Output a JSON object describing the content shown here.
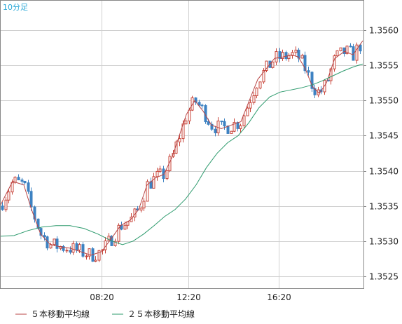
{
  "chart_data": {
    "type": "candlestick",
    "title": "10分足",
    "x_ticks": [
      "08:20",
      "12:20",
      "16:20"
    ],
    "y_ticks": [
      1.356,
      1.3555,
      1.355,
      1.3545,
      1.354,
      1.3535,
      1.353,
      1.3525
    ],
    "ylim": [
      1.35233,
      1.35643
    ],
    "grid": true,
    "y_axis_side": "right",
    "legend_position": "bottom-left",
    "colors": {
      "up": "#c8453a",
      "down": "#3d82c2",
      "ma5": "#b84545",
      "ma25": "#2e9b6e",
      "grid": "#d0d0d0",
      "title": "#2aa8d8"
    },
    "series": [
      {
        "name": "５本移動平均線",
        "color": "#b84545",
        "points": [
          [
            0,
            1.3535
          ],
          [
            18,
            1.35385
          ],
          [
            34,
            1.3538
          ],
          [
            45,
            1.35345
          ],
          [
            58,
            1.3531
          ],
          [
            72,
            1.35295
          ],
          [
            86,
            1.35292
          ],
          [
            100,
            1.3529
          ],
          [
            115,
            1.35285
          ],
          [
            130,
            1.3528
          ],
          [
            145,
            1.35285
          ],
          [
            160,
            1.35305
          ],
          [
            172,
            1.35322
          ],
          [
            186,
            1.3533
          ],
          [
            198,
            1.35345
          ],
          [
            210,
            1.3538
          ],
          [
            222,
            1.3539
          ],
          [
            234,
            1.35395
          ],
          [
            246,
            1.3542
          ],
          [
            256,
            1.3545
          ],
          [
            266,
            1.3548
          ],
          [
            278,
            1.355
          ],
          [
            290,
            1.35485
          ],
          [
            302,
            1.35465
          ],
          [
            316,
            1.3546
          ],
          [
            330,
            1.35465
          ],
          [
            344,
            1.3547
          ],
          [
            356,
            1.355
          ],
          [
            368,
            1.3553
          ],
          [
            380,
            1.35545
          ],
          [
            392,
            1.3556
          ],
          [
            404,
            1.35562
          ],
          [
            416,
            1.35565
          ],
          [
            426,
            1.35562
          ],
          [
            436,
            1.35545
          ],
          [
            446,
            1.3552
          ],
          [
            456,
            1.3551
          ],
          [
            466,
            1.35525
          ],
          [
            478,
            1.3556
          ],
          [
            492,
            1.3557
          ],
          [
            504,
            1.35565
          ],
          [
            518,
            1.35585
          ]
        ]
      },
      {
        "name": "２５本移動平均線",
        "color": "#2e9b6e",
        "points": [
          [
            0,
            1.35307
          ],
          [
            20,
            1.35308
          ],
          [
            40,
            1.35315
          ],
          [
            60,
            1.3532
          ],
          [
            80,
            1.35322
          ],
          [
            100,
            1.35322
          ],
          [
            120,
            1.35318
          ],
          [
            140,
            1.3531
          ],
          [
            160,
            1.353
          ],
          [
            175,
            1.35295
          ],
          [
            190,
            1.353
          ],
          [
            205,
            1.3531
          ],
          [
            220,
            1.35322
          ],
          [
            235,
            1.35335
          ],
          [
            250,
            1.35345
          ],
          [
            265,
            1.3536
          ],
          [
            280,
            1.3538
          ],
          [
            295,
            1.35405
          ],
          [
            310,
            1.35425
          ],
          [
            325,
            1.3544
          ],
          [
            340,
            1.3545
          ],
          [
            355,
            1.35468
          ],
          [
            370,
            1.3549
          ],
          [
            385,
            1.35505
          ],
          [
            400,
            1.35512
          ],
          [
            415,
            1.35515
          ],
          [
            430,
            1.35518
          ],
          [
            445,
            1.35522
          ],
          [
            460,
            1.35528
          ],
          [
            475,
            1.35535
          ],
          [
            490,
            1.35542
          ],
          [
            505,
            1.35548
          ],
          [
            518,
            1.35552
          ]
        ]
      }
    ]
  },
  "legend": {
    "ma5_label": "５本移動平均線",
    "ma25_label": "２５本移動平均線"
  }
}
